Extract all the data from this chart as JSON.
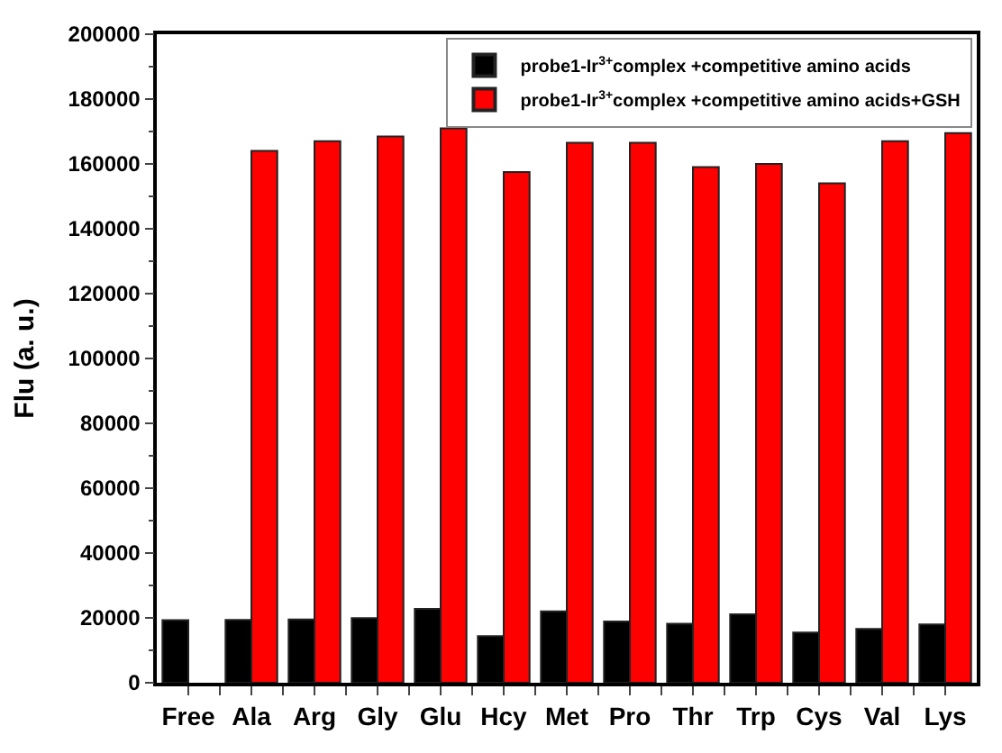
{
  "chart_data": {
    "type": "bar",
    "ylabel": "Flu (a. u.)",
    "categories": [
      "Free",
      "Ala",
      "Arg",
      "Gly",
      "Glu",
      "Hcy",
      "Met",
      "Pro",
      "Thr",
      "Trp",
      "Cys",
      "Val",
      "Lys"
    ],
    "series": [
      {
        "name": "probe1-Ir$^{3+}$complex +competitive amino acids",
        "color": "#000000",
        "values": [
          19300,
          19400,
          19500,
          19900,
          22800,
          14400,
          22000,
          18900,
          18200,
          21100,
          15500,
          16600,
          18000
        ]
      },
      {
        "name": "probe1-Ir$^{3+}$complex +competitive amino acids+GSH",
        "color": "#ff0000",
        "values": [
          null,
          164000,
          167000,
          168500,
          171000,
          157500,
          166500,
          166500,
          159000,
          160000,
          154000,
          167000,
          169500
        ]
      }
    ],
    "ylim": [
      0,
      200000
    ],
    "yticks": [
      0,
      20000,
      40000,
      60000,
      80000,
      100000,
      120000,
      140000,
      160000,
      180000,
      200000
    ],
    "legend": "top right"
  }
}
